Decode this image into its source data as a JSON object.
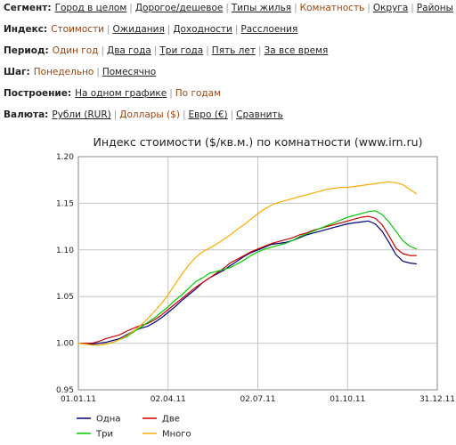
{
  "filters": [
    {
      "label": "Сегмент:",
      "options": [
        {
          "text": "Город в целом",
          "active": false
        },
        {
          "text": "Дорогое/дешевое",
          "active": false
        },
        {
          "text": "Типы жилья",
          "active": false
        },
        {
          "text": "Комнатность",
          "active": true
        },
        {
          "text": "Округа",
          "active": false
        },
        {
          "text": "Районы",
          "active": false
        }
      ]
    },
    {
      "label": "Индекс:",
      "options": [
        {
          "text": "Стоимости",
          "active": true
        },
        {
          "text": "Ожидания",
          "active": false
        },
        {
          "text": "Доходности",
          "active": false
        },
        {
          "text": "Расслоения",
          "active": false
        }
      ]
    },
    {
      "label": "Период:",
      "options": [
        {
          "text": "Один год",
          "active": true
        },
        {
          "text": "Два года",
          "active": false
        },
        {
          "text": "Три года",
          "active": false
        },
        {
          "text": "Пять лет",
          "active": false
        },
        {
          "text": "За все время",
          "active": false
        }
      ]
    },
    {
      "label": "Шаг:",
      "options": [
        {
          "text": "Понедельно",
          "active": true
        },
        {
          "text": "Помесячно",
          "active": false
        }
      ]
    },
    {
      "label": "Построение:",
      "options": [
        {
          "text": "На одном графике",
          "active": false
        },
        {
          "text": "По годам",
          "active": true
        }
      ]
    },
    {
      "label": "Валюта:",
      "options": [
        {
          "text": "Рубли (RUR)",
          "active": false
        },
        {
          "text": "Доллары ($)",
          "active": true
        },
        {
          "text": "Евро (€)",
          "active": false
        },
        {
          "text": "Сравнить",
          "active": false
        }
      ]
    }
  ],
  "chart_data": {
    "type": "line",
    "title": "Индекс стоимости ($/кв.м.) по комнатности (www.irn.ru)",
    "xlabel": "",
    "ylabel": "",
    "x_start": "01.01.11",
    "x_step_weeks": 1,
    "x_ticks": [
      "01.01.11",
      "02.04.11",
      "02.07.11",
      "01.10.11",
      "31.12.11"
    ],
    "ylim": [
      0.95,
      1.2
    ],
    "y_ticks": [
      "0.95",
      "1.00",
      "1.05",
      "1.10",
      "1.15",
      "1.20"
    ],
    "grid": true,
    "legend_position": "bottom",
    "series": [
      {
        "name": "Одна",
        "color": "#000080",
        "values": [
          1.0,
          1.0,
          0.999,
          1.0,
          1.001,
          1.003,
          1.005,
          1.009,
          1.013,
          1.016,
          1.018,
          1.022,
          1.027,
          1.033,
          1.039,
          1.046,
          1.052,
          1.058,
          1.065,
          1.07,
          1.074,
          1.078,
          1.083,
          1.088,
          1.093,
          1.097,
          1.1,
          1.103,
          1.106,
          1.107,
          1.108,
          1.11,
          1.113,
          1.116,
          1.118,
          1.12,
          1.122,
          1.124,
          1.126,
          1.128,
          1.129,
          1.13,
          1.131,
          1.128,
          1.12,
          1.108,
          1.095,
          1.088,
          1.086,
          1.085
        ]
      },
      {
        "name": "Две",
        "color": "#cc0000",
        "values": [
          1.0,
          1.0,
          1.0,
          1.002,
          1.005,
          1.007,
          1.009,
          1.013,
          1.016,
          1.019,
          1.021,
          1.025,
          1.03,
          1.036,
          1.042,
          1.048,
          1.054,
          1.06,
          1.065,
          1.07,
          1.075,
          1.08,
          1.086,
          1.09,
          1.094,
          1.098,
          1.101,
          1.104,
          1.107,
          1.109,
          1.111,
          1.113,
          1.116,
          1.118,
          1.121,
          1.123,
          1.125,
          1.127,
          1.129,
          1.131,
          1.133,
          1.135,
          1.136,
          1.134,
          1.127,
          1.115,
          1.102,
          1.096,
          1.094,
          1.094
        ]
      },
      {
        "name": "Три",
        "color": "#00cc00",
        "values": [
          1.0,
          0.999,
          0.998,
          0.998,
          0.999,
          1.001,
          1.004,
          1.007,
          1.012,
          1.017,
          1.022,
          1.027,
          1.033,
          1.039,
          1.046,
          1.052,
          1.059,
          1.066,
          1.07,
          1.075,
          1.077,
          1.079,
          1.081,
          1.085,
          1.089,
          1.094,
          1.098,
          1.101,
          1.103,
          1.105,
          1.107,
          1.11,
          1.114,
          1.117,
          1.12,
          1.123,
          1.126,
          1.129,
          1.132,
          1.135,
          1.137,
          1.139,
          1.141,
          1.142,
          1.138,
          1.13,
          1.12,
          1.11,
          1.104,
          1.101
        ]
      },
      {
        "name": "Много",
        "color": "#ffaa00",
        "values": [
          1.0,
          0.999,
          0.998,
          0.998,
          0.999,
          1.001,
          1.004,
          1.008,
          1.013,
          1.019,
          1.026,
          1.034,
          1.042,
          1.052,
          1.063,
          1.074,
          1.084,
          1.092,
          1.098,
          1.102,
          1.106,
          1.111,
          1.116,
          1.122,
          1.127,
          1.133,
          1.139,
          1.144,
          1.148,
          1.151,
          1.153,
          1.155,
          1.157,
          1.159,
          1.161,
          1.163,
          1.165,
          1.166,
          1.167,
          1.167,
          1.168,
          1.169,
          1.17,
          1.171,
          1.172,
          1.173,
          1.172,
          1.17,
          1.165,
          1.16
        ]
      }
    ]
  }
}
